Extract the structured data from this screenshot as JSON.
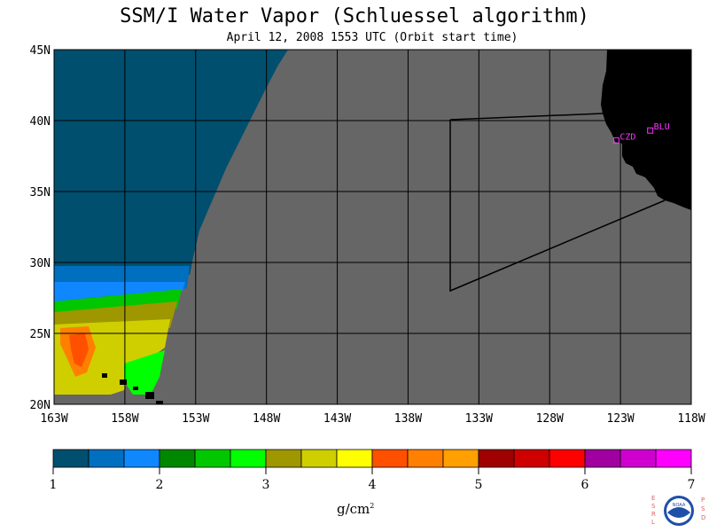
{
  "header": {
    "title": "SSM/I Water Vapor (Schluessel algorithm)",
    "subtitle": "April 12, 2008  1553 UTC  (Orbit start time)"
  },
  "map": {
    "lat_labels": [
      "45N",
      "40N",
      "35N",
      "30N",
      "25N",
      "20N"
    ],
    "lat_values": [
      45,
      40,
      35,
      30,
      25,
      20
    ],
    "lon_labels": [
      "163W",
      "158W",
      "153W",
      "148W",
      "143W",
      "138W",
      "133W",
      "128W",
      "123W",
      "118W"
    ],
    "lon_values": [
      -163,
      -158,
      -153,
      -148,
      -143,
      -138,
      -133,
      -128,
      -123,
      -118
    ],
    "lon_range": [
      -163,
      -118
    ],
    "lat_range": [
      20,
      45
    ],
    "stations": [
      {
        "id": "CZD",
        "lon": -123.3,
        "lat": 38.6
      },
      {
        "id": "BLU",
        "lon": -120.9,
        "lat": 39.3
      }
    ],
    "no_data_color": "#666666",
    "land_color": "#000000",
    "grid_color": "#000000",
    "station_color": "#ff33ff"
  },
  "colorbar": {
    "colors": [
      "#004f6f",
      "#006fbf",
      "#0f87ff",
      "#008700",
      "#00c700",
      "#00ff00",
      "#9f9700",
      "#cfcf00",
      "#ffff00",
      "#ff5000",
      "#ff7f00",
      "#ff9f00",
      "#9f0000",
      "#cf0000",
      "#ff0000",
      "#9f009f",
      "#cf00cf",
      "#ff00ff"
    ],
    "tick_labels": [
      "1",
      "2",
      "3",
      "4",
      "5",
      "6",
      "7"
    ],
    "unit": "g/cm",
    "unit_exp": "2"
  },
  "logo": {
    "left_letters": "ESRL",
    "right_letters": "PSD",
    "center_text": "NOAA"
  },
  "colors": {
    "deep_vapor": "#004f6f",
    "mid_blue": "#006fbf",
    "green": "#00c700",
    "olive": "#9f9700",
    "yellow": "#cfcf00",
    "orange": "#ff5000"
  }
}
